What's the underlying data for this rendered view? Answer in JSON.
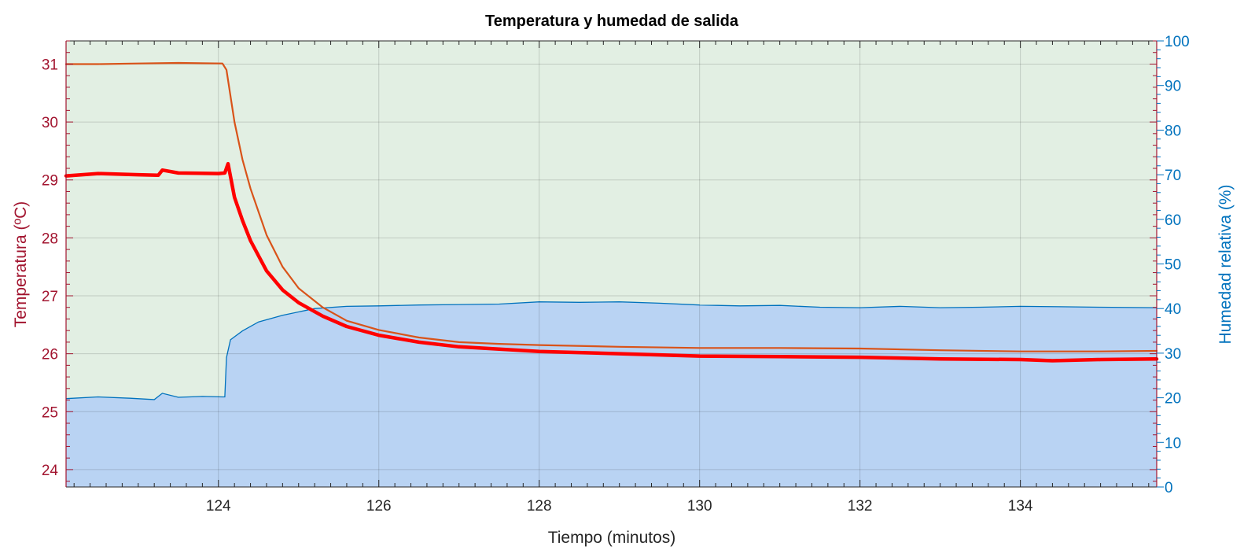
{
  "chart_data": {
    "type": "line",
    "title": "Temperatura y humedad de salida",
    "xlabel": "Tiempo (minutos)",
    "ylabel_left": "Temperatura (ºC)",
    "ylabel_right": "Humedad relativa (%)",
    "xlim": [
      122.1,
      135.7
    ],
    "ylim_left": [
      23.7,
      31.4
    ],
    "ylim_right": [
      0,
      100
    ],
    "x_ticks": [
      124,
      126,
      128,
      130,
      132,
      134
    ],
    "y_left_ticks": [
      24,
      25,
      26,
      27,
      28,
      29,
      30,
      31
    ],
    "y_right_ticks": [
      0,
      10,
      20,
      30,
      40,
      50,
      60,
      70,
      80,
      90,
      100
    ],
    "grid": true,
    "colors": {
      "left_axis": "#a2142f",
      "right_axis": "#0072bd",
      "plot_background": "#e2efe3",
      "humidity_fill": "#b9d3f3",
      "humidity_line": "#0072bd",
      "temp_thin": "#d95319",
      "temp_thick": "#ff0000",
      "grid": "#c8c8c8"
    },
    "series": [
      {
        "axis": "right",
        "style": "area",
        "x": [
          122.1,
          122.5,
          122.9,
          123.2,
          123.3,
          123.5,
          123.8,
          124.05,
          124.08,
          124.1,
          124.15,
          124.3,
          124.5,
          124.8,
          125.2,
          125.6,
          126.0,
          126.5,
          127.0,
          127.5,
          128.0,
          128.5,
          129.0,
          129.5,
          130.0,
          130.5,
          131.0,
          131.5,
          132.0,
          132.5,
          133.0,
          133.5,
          134.0,
          134.5,
          135.0,
          135.7
        ],
        "values": [
          19.8,
          20.2,
          19.9,
          19.6,
          21.0,
          20.1,
          20.3,
          20.2,
          20.2,
          29.0,
          33.0,
          35.0,
          37.0,
          38.5,
          40.0,
          40.5,
          40.6,
          40.8,
          40.9,
          41.0,
          41.5,
          41.4,
          41.5,
          41.2,
          40.8,
          40.6,
          40.7,
          40.3,
          40.2,
          40.5,
          40.2,
          40.3,
          40.5,
          40.4,
          40.3,
          40.2
        ]
      },
      {
        "axis": "left",
        "style": "line-thin",
        "x": [
          122.1,
          122.5,
          123.0,
          123.5,
          124.05,
          124.1,
          124.2,
          124.3,
          124.4,
          124.6,
          124.8,
          125.0,
          125.3,
          125.6,
          126.0,
          126.5,
          127.0,
          127.5,
          128.0,
          129.0,
          130.0,
          131.0,
          132.0,
          133.0,
          134.0,
          135.0,
          135.7
        ],
        "values": [
          31.0,
          31.0,
          31.01,
          31.02,
          31.01,
          30.9,
          30.0,
          29.35,
          28.85,
          28.05,
          27.5,
          27.13,
          26.8,
          26.57,
          26.41,
          26.28,
          26.2,
          26.17,
          26.15,
          26.12,
          26.1,
          26.1,
          26.09,
          26.06,
          26.04,
          26.04,
          26.05
        ]
      },
      {
        "axis": "left",
        "style": "line-thick",
        "x": [
          122.1,
          122.5,
          123.0,
          123.25,
          123.3,
          123.5,
          124.0,
          124.08,
          124.12,
          124.2,
          124.3,
          124.4,
          124.6,
          124.8,
          125.0,
          125.3,
          125.6,
          126.0,
          126.5,
          127.0,
          127.5,
          128.0,
          129.0,
          130.0,
          131.0,
          132.0,
          133.0,
          134.0,
          134.4,
          135.0,
          135.7
        ],
        "values": [
          29.07,
          29.11,
          29.09,
          29.08,
          29.17,
          29.12,
          29.11,
          29.12,
          29.28,
          28.7,
          28.3,
          27.95,
          27.43,
          27.1,
          26.88,
          26.65,
          26.47,
          26.32,
          26.2,
          26.12,
          26.08,
          26.04,
          26.0,
          25.96,
          25.95,
          25.94,
          25.91,
          25.9,
          25.88,
          25.9,
          25.91
        ]
      }
    ]
  }
}
